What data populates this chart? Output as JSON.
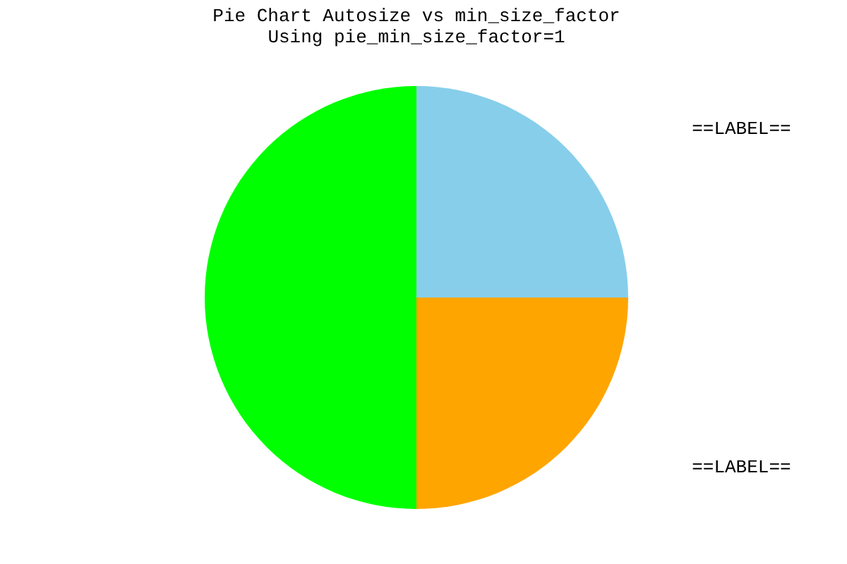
{
  "chart_data": {
    "type": "pie",
    "title": "Pie Chart Autosize vs min_size_factor",
    "subtitle": "Using pie_min_size_factor=1",
    "categories": [
      "==LABEL==",
      "==LABEL==",
      null
    ],
    "values": [
      25,
      25,
      50
    ],
    "colors": [
      "#87ceeb",
      "#ffa500",
      "#00ff00"
    ],
    "legend": false
  }
}
